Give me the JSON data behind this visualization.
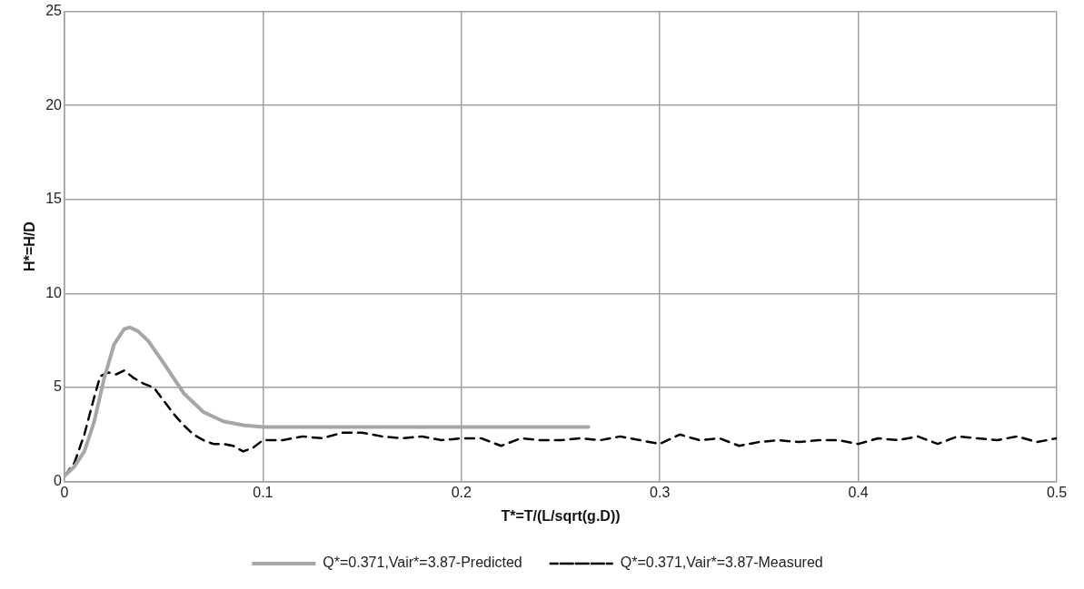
{
  "chart_data": {
    "type": "line",
    "xlabel": "T*=T/(L/sqrt(g.D))",
    "ylabel": "H*=H/D",
    "xlim": [
      0,
      0.5
    ],
    "xticks": [
      0,
      0.1,
      0.2,
      0.3,
      0.4,
      0.5
    ],
    "ylim": [
      0,
      25
    ],
    "yticks": [
      0,
      5,
      10,
      15,
      20,
      25
    ],
    "grid": true,
    "legend": "bottom",
    "marker": "none",
    "series": [
      {
        "name": "Q*=0.371,Vair*=3.87-Predicted",
        "color": "#a6a6a6",
        "line_style": "solid",
        "x": [
          0,
          0.005,
          0.01,
          0.015,
          0.02,
          0.025,
          0.03,
          0.033,
          0.037,
          0.042,
          0.05,
          0.06,
          0.07,
          0.08,
          0.09,
          0.1,
          0.15,
          0.2,
          0.264
        ],
        "values": [
          0.3,
          0.8,
          1.6,
          3.2,
          5.5,
          7.3,
          8.1,
          8.2,
          8.0,
          7.5,
          6.3,
          4.7,
          3.7,
          3.2,
          3.0,
          2.9,
          2.9,
          2.9,
          2.9
        ]
      },
      {
        "name": "Q*=0.371,Vair*=3.87-Measured",
        "color": "#000000",
        "line_style": "dashed",
        "x": [
          0,
          0.005,
          0.01,
          0.015,
          0.018,
          0.022,
          0.026,
          0.03,
          0.035,
          0.04,
          0.045,
          0.05,
          0.055,
          0.06,
          0.065,
          0.07,
          0.075,
          0.08,
          0.085,
          0.09,
          0.095,
          0.1,
          0.11,
          0.12,
          0.13,
          0.14,
          0.15,
          0.16,
          0.17,
          0.18,
          0.19,
          0.2,
          0.21,
          0.22,
          0.23,
          0.24,
          0.25,
          0.26,
          0.27,
          0.28,
          0.29,
          0.3,
          0.31,
          0.32,
          0.33,
          0.34,
          0.35,
          0.36,
          0.37,
          0.38,
          0.39,
          0.4,
          0.41,
          0.42,
          0.43,
          0.44,
          0.45,
          0.46,
          0.47,
          0.48,
          0.49,
          0.5
        ],
        "values": [
          0.3,
          1.0,
          2.5,
          4.5,
          5.6,
          5.8,
          5.7,
          5.9,
          5.5,
          5.2,
          5.0,
          4.3,
          3.6,
          3.0,
          2.5,
          2.2,
          2.0,
          2.0,
          1.9,
          1.6,
          1.8,
          2.2,
          2.2,
          2.4,
          2.3,
          2.6,
          2.6,
          2.4,
          2.3,
          2.4,
          2.2,
          2.3,
          2.3,
          1.9,
          2.3,
          2.2,
          2.2,
          2.3,
          2.2,
          2.4,
          2.2,
          2.0,
          2.5,
          2.2,
          2.3,
          1.9,
          2.1,
          2.2,
          2.1,
          2.2,
          2.2,
          2.0,
          2.3,
          2.2,
          2.4,
          2.0,
          2.4,
          2.3,
          2.2,
          2.4,
          2.1,
          2.3
        ]
      }
    ]
  }
}
